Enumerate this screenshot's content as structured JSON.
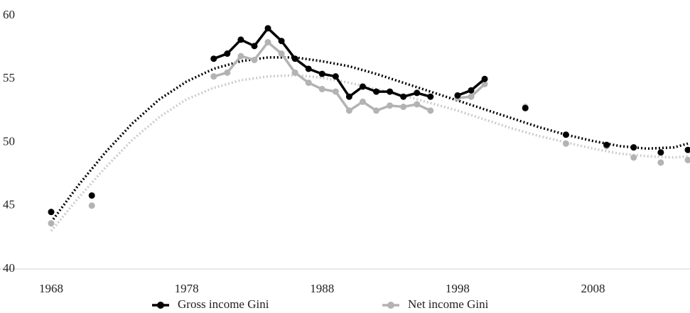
{
  "chart_data": {
    "type": "line",
    "x": [
      1968,
      1970,
      1971,
      1975,
      1980,
      1981,
      1982,
      1983,
      1984,
      1985,
      1986,
      1987,
      1988,
      1989,
      1990,
      1991,
      1992,
      1993,
      1994,
      1995,
      1996,
      1997,
      1998,
      1999,
      2000,
      2001,
      2003,
      2004,
      2006,
      2007,
      2009,
      2010,
      2011,
      2012,
      2013,
      2014,
      2015
    ],
    "series": [
      {
        "name": "Gross income Gini",
        "color": "#000000",
        "values": [
          44.5,
          null,
          45.8,
          null,
          56.6,
          57.0,
          58.1,
          57.6,
          59.0,
          58.0,
          56.6,
          55.8,
          55.4,
          55.2,
          53.6,
          54.4,
          54.0,
          54.0,
          53.6,
          53.9,
          53.6,
          null,
          53.7,
          54.1,
          55.0,
          null,
          52.7,
          null,
          50.6,
          null,
          49.8,
          null,
          49.6,
          null,
          49.2,
          null,
          49.4
        ]
      },
      {
        "name": "Net income Gini",
        "color": "#b3b3b3",
        "values": [
          43.6,
          null,
          45.0,
          null,
          55.2,
          55.5,
          56.8,
          56.5,
          57.9,
          57.0,
          55.5,
          54.7,
          54.2,
          54.0,
          52.5,
          53.2,
          52.5,
          52.9,
          52.8,
          53.0,
          52.5,
          null,
          53.5,
          53.6,
          54.6,
          null,
          52.8,
          null,
          49.9,
          null,
          49.7,
          null,
          48.8,
          null,
          48.4,
          null,
          48.6
        ]
      }
    ],
    "trend_x": [
      1968,
      1970,
      1972,
      1974,
      1976,
      1978,
      1980,
      1982,
      1984,
      1986,
      1988,
      1990,
      1992,
      1994,
      1996,
      1998,
      2000,
      2002,
      2004,
      2006,
      2008,
      2010,
      2012,
      2014,
      2015
    ],
    "trendlines": [
      {
        "color": "#000000",
        "values": [
          43.7,
          46.6,
          49.2,
          51.5,
          53.4,
          54.8,
          55.8,
          56.4,
          56.7,
          56.7,
          56.4,
          56.0,
          55.4,
          54.7,
          54.0,
          53.3,
          52.6,
          51.9,
          51.2,
          50.6,
          50.1,
          49.7,
          49.5,
          49.6,
          49.9
        ]
      },
      {
        "color": "#cccccc",
        "values": [
          43.0,
          45.6,
          48.0,
          50.2,
          52.0,
          53.4,
          54.3,
          54.9,
          55.2,
          55.3,
          55.1,
          54.7,
          54.2,
          53.7,
          53.1,
          52.5,
          51.8,
          51.1,
          50.5,
          50.0,
          49.5,
          49.1,
          48.9,
          48.8,
          48.9
        ]
      }
    ],
    "xlim": [
      1968,
      2015
    ],
    "xticks": [
      1968,
      1978,
      1988,
      1998,
      2008
    ],
    "ylim": [
      40,
      60
    ],
    "yticks": [
      40,
      45,
      50,
      55,
      60
    ],
    "legend": "bottom"
  }
}
